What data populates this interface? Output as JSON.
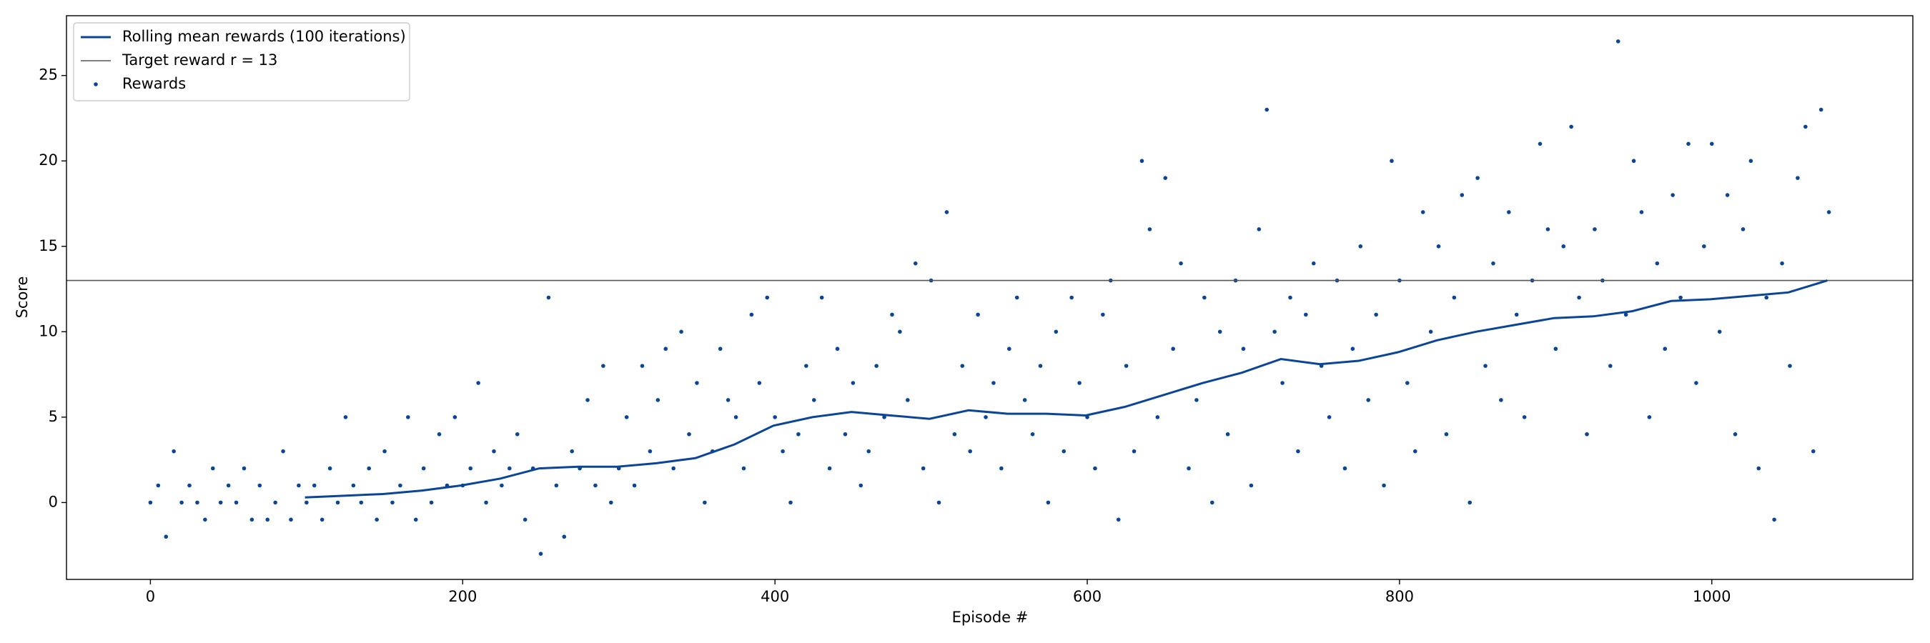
{
  "chart_data": {
    "type": "scatter",
    "xlabel": "Episode #",
    "ylabel": "Score",
    "xlim": [
      -53.75,
      1128.75
    ],
    "ylim": [
      -4.5,
      28.5
    ],
    "xticks": [
      0,
      200,
      400,
      600,
      800,
      1000
    ],
    "yticks": [
      0,
      5,
      10,
      15,
      20,
      25
    ],
    "legend": "upper-left",
    "series": [
      {
        "name": "Rolling mean rewards (100 iterations)",
        "kind": "line",
        "color": "#0b4596",
        "x": [
          99,
          124,
          149,
          174,
          199,
          224,
          249,
          274,
          299,
          324,
          349,
          374,
          399,
          424,
          449,
          474,
          499,
          524,
          549,
          574,
          599,
          624,
          649,
          674,
          699,
          724,
          749,
          774,
          799,
          824,
          849,
          874,
          899,
          924,
          949,
          974,
          999,
          1024,
          1049,
          1074
        ],
        "values": [
          0.3,
          0.4,
          0.5,
          0.7,
          1.0,
          1.4,
          2.0,
          2.1,
          2.1,
          2.3,
          2.6,
          3.4,
          4.5,
          5.0,
          5.3,
          5.1,
          4.9,
          5.4,
          5.2,
          5.2,
          5.1,
          5.6,
          6.3,
          7.0,
          7.6,
          8.4,
          8.1,
          8.3,
          8.8,
          9.5,
          10.0,
          10.4,
          10.8,
          10.9,
          11.2,
          11.8,
          11.9,
          12.1,
          12.3,
          13.0
        ]
      },
      {
        "name": "Target reward r = 13",
        "kind": "hline",
        "color": "#555555",
        "y": 13
      },
      {
        "name": "Rewards",
        "kind": "scatter",
        "color": "#0b4596",
        "x": [
          0,
          5,
          10,
          15,
          20,
          25,
          30,
          35,
          40,
          45,
          50,
          55,
          60,
          65,
          70,
          75,
          80,
          85,
          90,
          95,
          100,
          105,
          110,
          115,
          120,
          125,
          130,
          135,
          140,
          145,
          150,
          155,
          160,
          165,
          170,
          175,
          180,
          185,
          190,
          195,
          200,
          205,
          210,
          215,
          220,
          225,
          230,
          235,
          240,
          245,
          250,
          255,
          260,
          265,
          270,
          275,
          280,
          285,
          290,
          295,
          300,
          305,
          310,
          315,
          320,
          325,
          330,
          335,
          340,
          345,
          350,
          355,
          360,
          365,
          370,
          375,
          380,
          385,
          390,
          395,
          400,
          405,
          410,
          415,
          420,
          425,
          430,
          435,
          440,
          445,
          450,
          455,
          460,
          465,
          470,
          475,
          480,
          485,
          490,
          495,
          500,
          505,
          510,
          515,
          520,
          525,
          530,
          535,
          540,
          545,
          550,
          555,
          560,
          565,
          570,
          575,
          580,
          585,
          590,
          595,
          600,
          605,
          610,
          615,
          620,
          625,
          630,
          635,
          640,
          645,
          650,
          655,
          660,
          665,
          670,
          675,
          680,
          685,
          690,
          695,
          700,
          705,
          710,
          715,
          720,
          725,
          730,
          735,
          740,
          745,
          750,
          755,
          760,
          765,
          770,
          775,
          780,
          785,
          790,
          795,
          800,
          805,
          810,
          815,
          820,
          825,
          830,
          835,
          840,
          845,
          850,
          855,
          860,
          865,
          870,
          875,
          880,
          885,
          890,
          895,
          900,
          905,
          910,
          915,
          920,
          925,
          930,
          935,
          940,
          945,
          950,
          955,
          960,
          965,
          970,
          975,
          980,
          985,
          990,
          995,
          1000,
          1005,
          1010,
          1015,
          1020,
          1025,
          1030,
          1035,
          1040,
          1045,
          1050,
          1055,
          1060,
          1065,
          1070,
          1075
        ],
        "values": [
          0,
          1,
          -2,
          3,
          0,
          1,
          0,
          -1,
          2,
          0,
          1,
          0,
          2,
          -1,
          1,
          -1,
          0,
          3,
          -1,
          1,
          0,
          1,
          -1,
          2,
          0,
          5,
          1,
          0,
          2,
          -1,
          3,
          0,
          1,
          5,
          -1,
          2,
          0,
          4,
          1,
          5,
          1,
          2,
          7,
          0,
          3,
          1,
          2,
          4,
          -1,
          2,
          -3,
          12,
          1,
          -2,
          3,
          2,
          6,
          1,
          8,
          0,
          2,
          5,
          1,
          8,
          3,
          6,
          9,
          2,
          10,
          4,
          7,
          0,
          3,
          9,
          6,
          5,
          2,
          11,
          7,
          12,
          5,
          3,
          0,
          4,
          8,
          6,
          12,
          2,
          9,
          4,
          7,
          1,
          3,
          8,
          5,
          11,
          10,
          6,
          14,
          2,
          13,
          0,
          17,
          4,
          8,
          3,
          11,
          5,
          7,
          2,
          9,
          12,
          6,
          4,
          8,
          0,
          10,
          3,
          12,
          7,
          5,
          2,
          11,
          13,
          -1,
          8,
          3,
          20,
          16,
          5,
          19,
          9,
          14,
          2,
          6,
          12,
          0,
          10,
          4,
          13,
          9,
          1,
          16,
          23,
          10,
          7,
          12,
          3,
          11,
          14,
          8,
          5,
          13,
          2,
          9,
          15,
          6,
          11,
          1,
          20,
          13,
          7,
          3,
          17,
          10,
          15,
          4,
          12,
          18,
          0,
          19,
          8,
          14,
          6,
          17,
          11,
          5,
          13,
          21,
          16,
          9,
          15,
          22,
          12,
          4,
          16,
          13,
          8,
          27,
          11,
          20,
          17,
          5,
          14,
          9,
          18,
          12,
          21,
          7,
          15,
          21,
          10,
          18,
          4,
          16,
          20,
          2,
          12,
          -1,
          14,
          8,
          19,
          22,
          3,
          23,
          17
        ]
      }
    ]
  }
}
